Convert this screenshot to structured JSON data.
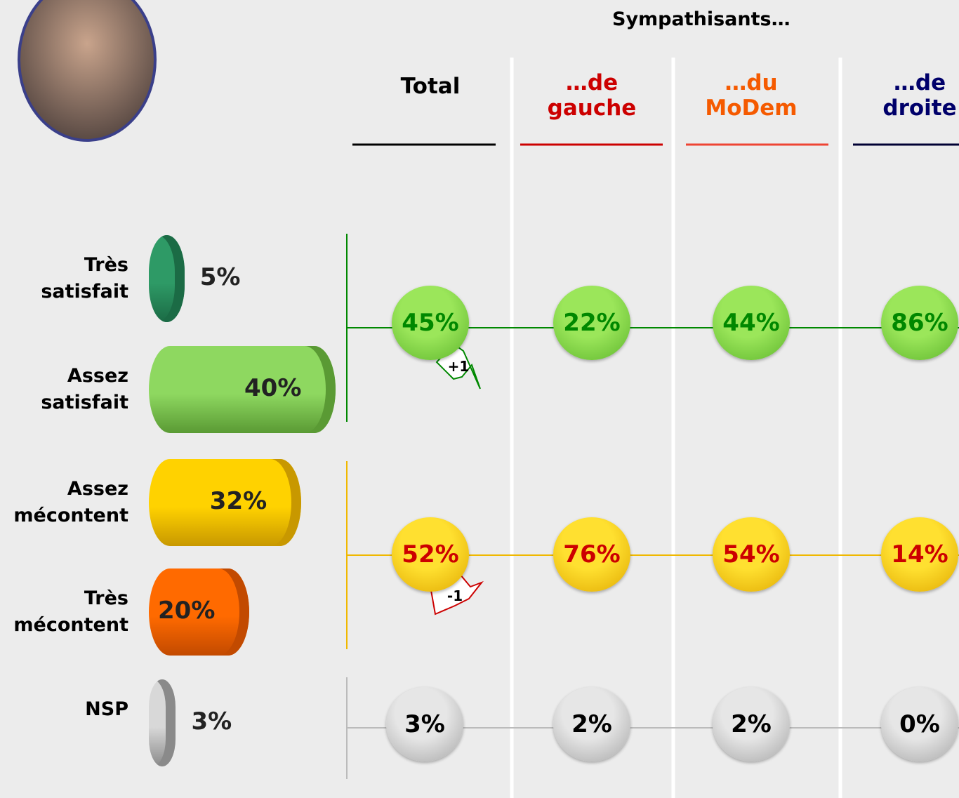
{
  "heading": "Sympathisants…",
  "columns": [
    "Total",
    "…de gauche",
    "…du MoDem",
    "…de droite"
  ],
  "rows": [
    {
      "label": "Très satisfait",
      "value": 5,
      "value_label": "5%"
    },
    {
      "label": "Assez satisfait",
      "value": 40,
      "value_label": "40%"
    },
    {
      "label": "Assez mécontent",
      "value": 32,
      "value_label": "32%"
    },
    {
      "label": "Très mécontent",
      "value": 20,
      "value_label": "20%"
    },
    {
      "label": "NSP",
      "value": 3,
      "value_label": "3%"
    }
  ],
  "satisfied": [
    "45%",
    "22%",
    "44%",
    "86%"
  ],
  "unhappy": [
    "52%",
    "76%",
    "54%",
    "14%"
  ],
  "nsp": [
    "3%",
    "2%",
    "2%",
    "0%"
  ],
  "changes": {
    "satisfied": "+1",
    "unhappy": "-1"
  }
}
